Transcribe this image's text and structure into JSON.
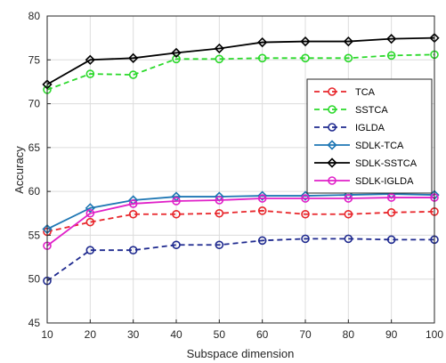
{
  "chart_data": {
    "type": "line",
    "title": "",
    "xlabel": "Subspace dimension",
    "ylabel": "Accuracy",
    "x": [
      10,
      20,
      30,
      40,
      50,
      60,
      70,
      80,
      90,
      100
    ],
    "xlim": [
      10,
      100
    ],
    "ylim": [
      45,
      80
    ],
    "xticks": [
      "10",
      "20",
      "30",
      "40",
      "50",
      "60",
      "70",
      "80",
      "90",
      "100"
    ],
    "yticks": [
      "45",
      "50",
      "55",
      "60",
      "65",
      "70",
      "75",
      "80"
    ],
    "grid": true,
    "legend_position": "right",
    "series": [
      {
        "name": "TCA",
        "color": "#e8262b",
        "dash": true,
        "marker": "circle",
        "values": [
          55.4,
          56.5,
          57.4,
          57.4,
          57.5,
          57.8,
          57.4,
          57.4,
          57.6,
          57.7
        ]
      },
      {
        "name": "SSTCA",
        "color": "#2bd92b",
        "dash": true,
        "marker": "circle",
        "values": [
          71.6,
          73.4,
          73.3,
          75.1,
          75.1,
          75.2,
          75.2,
          75.2,
          75.5,
          75.6
        ]
      },
      {
        "name": "IGLDA",
        "color": "#1f2a8f",
        "dash": true,
        "marker": "circle",
        "values": [
          49.8,
          53.3,
          53.3,
          53.9,
          53.9,
          54.4,
          54.6,
          54.6,
          54.5,
          54.5
        ]
      },
      {
        "name": "SDLK-TCA",
        "color": "#1f77b4",
        "dash": false,
        "marker": "diamond",
        "values": [
          55.7,
          58.1,
          59.0,
          59.4,
          59.4,
          59.5,
          59.5,
          59.6,
          59.7,
          59.6
        ]
      },
      {
        "name": "SDLK-SSTCA",
        "color": "#000000",
        "dash": false,
        "marker": "diamond",
        "values": [
          72.2,
          75.0,
          75.2,
          75.8,
          76.3,
          77.0,
          77.1,
          77.1,
          77.4,
          77.5
        ]
      },
      {
        "name": "SDLK-IGLDA",
        "color": "#e020c8",
        "dash": false,
        "marker": "circle",
        "values": [
          53.8,
          57.5,
          58.6,
          58.9,
          59.0,
          59.2,
          59.2,
          59.2,
          59.3,
          59.3
        ]
      }
    ]
  }
}
